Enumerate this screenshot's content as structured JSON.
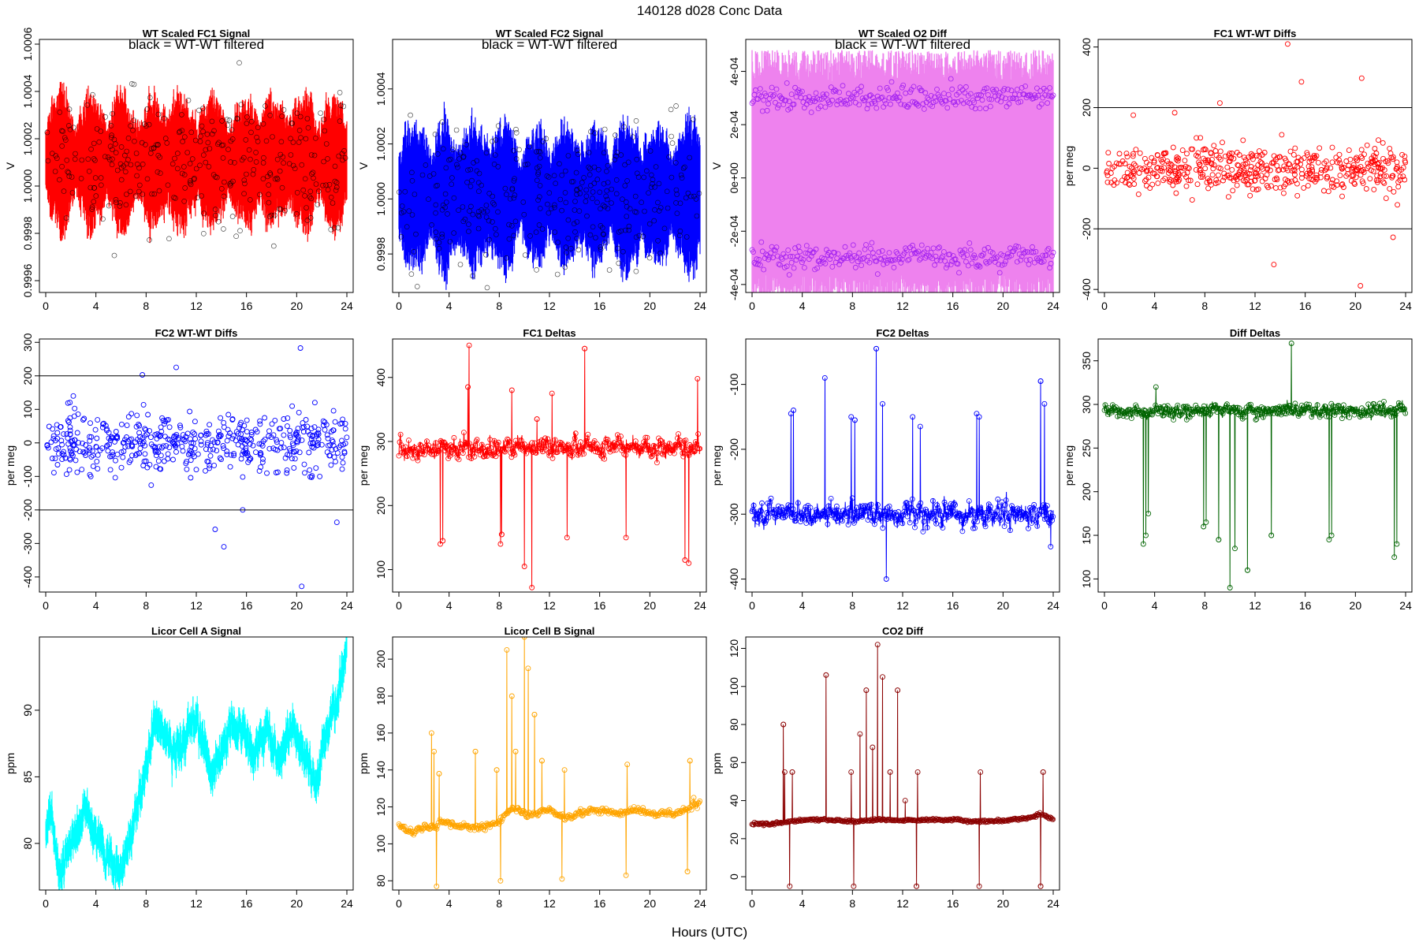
{
  "figure": {
    "title": "140128   d028   Conc Data",
    "xlabel": "Hours (UTC)"
  },
  "chart_data": [
    {
      "id": "fc1_signal",
      "type": "line",
      "title": "WT Scaled FC1 Signal",
      "annotation": "black = WT-WT filtered",
      "ylabel": "V",
      "color": "#ff0000",
      "xlim": [
        0,
        24
      ],
      "ylim": [
        0.99955,
        1.00062
      ],
      "xticks": [
        "0",
        "4",
        "8",
        "12",
        "16",
        "20",
        "24"
      ],
      "yticks": [
        0.9996,
        0.9998,
        1.0,
        1.0002,
        1.0004,
        1.0006
      ],
      "ytick_labels": [
        "0.9996",
        "0.9998",
        "1.0000",
        "1.0002",
        "1.0004",
        "1.0006"
      ],
      "center": 1.0001,
      "amplitude": 0.00024,
      "series": [
        {
          "name": "signal",
          "color": "#ff0000",
          "style": "band"
        },
        {
          "name": "WT-WT filtered",
          "color": "#000000",
          "style": "points"
        }
      ]
    },
    {
      "id": "fc2_signal",
      "type": "line",
      "title": "WT Scaled FC2 Signal",
      "annotation": "black = WT-WT filtered",
      "ylabel": "V",
      "color": "#0000ff",
      "xlim": [
        0,
        24
      ],
      "ylim": [
        0.99966,
        1.00058
      ],
      "xticks": [
        "0",
        "4",
        "8",
        "12",
        "16",
        "20",
        "24"
      ],
      "yticks": [
        0.9998,
        1.0,
        1.0002,
        1.0004
      ],
      "ytick_labels": [
        "0.9998",
        "1.0000",
        "1.0002",
        "1.0004"
      ],
      "center": 1.00001,
      "amplitude": 0.00022,
      "series": [
        {
          "name": "signal",
          "color": "#0000ff",
          "style": "band"
        },
        {
          "name": "WT-WT filtered",
          "color": "#000000",
          "style": "points"
        }
      ]
    },
    {
      "id": "o2_diff",
      "type": "line",
      "title": "WT Scaled O2 Diff",
      "annotation": "black = WT-WT filtered",
      "ylabel": "V",
      "color": "#ee82ee",
      "xlim": [
        0,
        24
      ],
      "ylim": [
        -0.00043,
        0.00052
      ],
      "xticks": [
        "0",
        "4",
        "8",
        "12",
        "16",
        "20",
        "24"
      ],
      "yticks": [
        -0.0004,
        -0.0002,
        0.0,
        0.0002,
        0.0004
      ],
      "ytick_labels": [
        "-4e-04",
        "-2e-04",
        "0e+00",
        "2e-04",
        "4e-04"
      ],
      "upper_level": 0.0003,
      "lower_level": -0.0003,
      "series": [
        {
          "name": "signal",
          "color": "#ee82ee",
          "style": "band"
        },
        {
          "name": "points",
          "color": "#a020f0",
          "style": "points"
        }
      ]
    },
    {
      "id": "fc1_wtwt",
      "type": "scatter",
      "title": "FC1 WT-WT Diffs",
      "ylabel": "per meg",
      "color": "#ff0000",
      "xlim": [
        0,
        24
      ],
      "ylim": [
        -410,
        425
      ],
      "xticks": [
        "0",
        "4",
        "8",
        "12",
        "16",
        "20",
        "24"
      ],
      "yticks": [
        -400,
        -200,
        0,
        200,
        400
      ],
      "ytick_labels": [
        "-400",
        "-200",
        "0",
        "200",
        "400"
      ],
      "hlines": [
        200,
        -200
      ],
      "spread": 38,
      "outliers": [
        [
          14.6,
          410
        ],
        [
          15.7,
          285
        ],
        [
          20.5,
          297
        ],
        [
          13.5,
          -318
        ],
        [
          20.4,
          -388
        ],
        [
          23.0,
          -228
        ],
        [
          9.2,
          215
        ],
        [
          2.3,
          175
        ],
        [
          5.6,
          183
        ]
      ]
    },
    {
      "id": "fc2_wtwt",
      "type": "scatter",
      "title": "FC2 WT-WT Diffs",
      "ylabel": "per meg",
      "color": "#0000ff",
      "xlim": [
        0,
        24
      ],
      "ylim": [
        -445,
        310
      ],
      "xticks": [
        "0",
        "4",
        "8",
        "12",
        "16",
        "20",
        "24"
      ],
      "yticks": [
        -400,
        -300,
        -200,
        -100,
        0,
        100,
        200,
        300
      ],
      "ytick_labels": [
        "-400",
        "-300",
        "-200",
        "-100",
        "0",
        "100",
        "200",
        "300"
      ],
      "hlines": [
        200,
        -200
      ],
      "spread": 45,
      "outliers": [
        [
          20.3,
          283
        ],
        [
          7.7,
          203
        ],
        [
          10.4,
          225
        ],
        [
          2.2,
          140
        ],
        [
          13.5,
          -258
        ],
        [
          14.2,
          -310
        ],
        [
          15.7,
          -200
        ],
        [
          20.4,
          -428
        ],
        [
          23.2,
          -237
        ]
      ]
    },
    {
      "id": "fc1_deltas",
      "type": "line",
      "title": "FC1 Deltas",
      "ylabel": "per meg",
      "color": "#ff0000",
      "xlim": [
        0,
        24
      ],
      "ylim": [
        65,
        460
      ],
      "xticks": [
        "0",
        "4",
        "8",
        "12",
        "16",
        "20",
        "24"
      ],
      "yticks": [
        100,
        200,
        300,
        400
      ],
      "ytick_labels": [
        "100",
        "200",
        "300",
        "400"
      ],
      "baseline": 290,
      "noise": 16,
      "spikes": [
        [
          3.3,
          140
        ],
        [
          3.5,
          145
        ],
        [
          5.6,
          450
        ],
        [
          5.5,
          385
        ],
        [
          8.1,
          140
        ],
        [
          8.2,
          155
        ],
        [
          9.0,
          380
        ],
        [
          10.0,
          105
        ],
        [
          10.6,
          72
        ],
        [
          11.0,
          335
        ],
        [
          14.8,
          445
        ],
        [
          13.4,
          150
        ],
        [
          18.1,
          150
        ],
        [
          22.8,
          115
        ],
        [
          23.1,
          110
        ],
        [
          23.8,
          398
        ],
        [
          12.2,
          375
        ]
      ]
    },
    {
      "id": "fc2_deltas",
      "type": "line",
      "title": "FC2 Deltas",
      "ylabel": "per meg",
      "color": "#0000ff",
      "xlim": [
        0,
        24
      ],
      "ylim": [
        -420,
        -30
      ],
      "xticks": [
        "0",
        "4",
        "8",
        "12",
        "16",
        "20",
        "24"
      ],
      "yticks": [
        -400,
        -300,
        -200,
        -100
      ],
      "ytick_labels": [
        "-400",
        "-300",
        "-200",
        "-100"
      ],
      "baseline": -300,
      "noise": 18,
      "spikes": [
        [
          3.1,
          -145
        ],
        [
          3.3,
          -140
        ],
        [
          5.8,
          -90
        ],
        [
          7.9,
          -150
        ],
        [
          8.2,
          -155
        ],
        [
          9.9,
          -45
        ],
        [
          10.7,
          -400
        ],
        [
          10.4,
          -130
        ],
        [
          12.8,
          -150
        ],
        [
          13.4,
          -165
        ],
        [
          17.9,
          -145
        ],
        [
          18.1,
          -150
        ],
        [
          23.0,
          -95
        ],
        [
          23.3,
          -130
        ],
        [
          23.8,
          -350
        ]
      ]
    },
    {
      "id": "diff_deltas",
      "type": "line",
      "title": "Diff Deltas",
      "ylabel": "per meg",
      "color": "#006400",
      "xlim": [
        0,
        24
      ],
      "ylim": [
        85,
        375
      ],
      "xticks": [
        "0",
        "4",
        "8",
        "12",
        "16",
        "20",
        "24"
      ],
      "yticks": [
        100,
        150,
        200,
        250,
        300,
        350
      ],
      "ytick_labels": [
        "100",
        "150",
        "200",
        "250",
        "300",
        "350"
      ],
      "baseline": 293,
      "noise": 8,
      "spikes": [
        [
          3.1,
          140
        ],
        [
          3.3,
          150
        ],
        [
          3.5,
          175
        ],
        [
          7.9,
          160
        ],
        [
          8.1,
          165
        ],
        [
          9.1,
          145
        ],
        [
          10.0,
          90
        ],
        [
          10.4,
          135
        ],
        [
          11.4,
          110
        ],
        [
          13.3,
          150
        ],
        [
          14.9,
          370
        ],
        [
          17.9,
          145
        ],
        [
          18.1,
          150
        ],
        [
          23.1,
          125
        ],
        [
          23.3,
          140
        ],
        [
          4.1,
          320
        ]
      ]
    },
    {
      "id": "licor_a",
      "type": "line",
      "title": "Licor Cell A Signal",
      "ylabel": "ppm",
      "color": "#00ffff",
      "xlim": [
        0,
        24
      ],
      "ylim": [
        76.5,
        95.5
      ],
      "xticks": [
        "0",
        "4",
        "8",
        "12",
        "16",
        "20",
        "24"
      ],
      "yticks": [
        80,
        85,
        90
      ],
      "ytick_labels": [
        "80",
        "85",
        "90"
      ],
      "trend": [
        [
          0,
          81.5
        ],
        [
          0.5,
          82.0
        ],
        [
          1.1,
          77.2
        ],
        [
          1.8,
          79.5
        ],
        [
          3.2,
          82.5
        ],
        [
          4.3,
          80.0
        ],
        [
          5.8,
          78.0
        ],
        [
          6.8,
          80.5
        ],
        [
          7.8,
          84.5
        ],
        [
          8.7,
          89.0
        ],
        [
          9.5,
          88.5
        ],
        [
          10.3,
          86.5
        ],
        [
          11.8,
          89.5
        ],
        [
          12.7,
          87.0
        ],
        [
          13.3,
          85.0
        ],
        [
          14.8,
          89.0
        ],
        [
          15.4,
          88.5
        ],
        [
          16.5,
          86.5
        ],
        [
          17.7,
          88.5
        ],
        [
          18.5,
          86.0
        ],
        [
          19.5,
          89.0
        ],
        [
          20.3,
          87.5
        ],
        [
          21.6,
          84.5
        ],
        [
          22.2,
          88.0
        ],
        [
          23.0,
          90.0
        ],
        [
          24,
          94.5
        ]
      ],
      "noise": 0.9
    },
    {
      "id": "licor_b",
      "type": "line",
      "title": "Licor Cell B Signal",
      "ylabel": "ppm",
      "color": "#ffa500",
      "xlim": [
        0,
        24
      ],
      "ylim": [
        75,
        212
      ],
      "xticks": [
        "0",
        "4",
        "8",
        "12",
        "16",
        "20",
        "24"
      ],
      "yticks": [
        80,
        100,
        120,
        140,
        160,
        180,
        200
      ],
      "ytick_labels": [
        "80",
        "100",
        "120",
        "140",
        "160",
        "180",
        "200"
      ],
      "trend": [
        [
          0,
          110
        ],
        [
          1.0,
          106
        ],
        [
          2.0,
          109
        ],
        [
          3.0,
          110
        ],
        [
          3.3,
          112
        ],
        [
          4.5,
          110
        ],
        [
          6.5,
          109
        ],
        [
          8.0,
          112
        ],
        [
          9.0,
          119
        ],
        [
          10.5,
          116
        ],
        [
          12.0,
          118
        ],
        [
          13.3,
          114
        ],
        [
          14.5,
          117
        ],
        [
          16.0,
          118
        ],
        [
          17.5,
          116
        ],
        [
          19.0,
          118
        ],
        [
          20.5,
          116
        ],
        [
          22.0,
          117
        ],
        [
          23.0,
          119
        ],
        [
          24,
          123
        ]
      ],
      "noise": 1.8,
      "spikes": [
        [
          2.6,
          160
        ],
        [
          2.8,
          150
        ],
        [
          3.0,
          77
        ],
        [
          3.2,
          138
        ],
        [
          6.1,
          150
        ],
        [
          7.8,
          140
        ],
        [
          8.1,
          80
        ],
        [
          8.6,
          205
        ],
        [
          9.0,
          180
        ],
        [
          9.3,
          150
        ],
        [
          10.0,
          212
        ],
        [
          10.3,
          195
        ],
        [
          10.8,
          170
        ],
        [
          11.4,
          145
        ],
        [
          13.0,
          81
        ],
        [
          13.2,
          140
        ],
        [
          18.1,
          83
        ],
        [
          18.2,
          143
        ],
        [
          23.0,
          85
        ],
        [
          23.2,
          145
        ],
        [
          23.5,
          125
        ]
      ]
    },
    {
      "id": "co2_diff",
      "type": "line",
      "title": "CO2 Diff",
      "ylabel": "ppm",
      "color": "#8b0000",
      "xlim": [
        0,
        24
      ],
      "ylim": [
        -7,
        126
      ],
      "xticks": [
        "0",
        "4",
        "8",
        "12",
        "16",
        "20",
        "24"
      ],
      "yticks": [
        0,
        20,
        40,
        60,
        80,
        100,
        120
      ],
      "ytick_labels": [
        "0",
        "20",
        "40",
        "60",
        "80",
        "100",
        "120"
      ],
      "trend": [
        [
          0,
          28
        ],
        [
          1.5,
          27.5
        ],
        [
          3.0,
          29
        ],
        [
          4.5,
          30
        ],
        [
          6.0,
          30
        ],
        [
          8.0,
          29
        ],
        [
          10.0,
          30
        ],
        [
          12.0,
          29.5
        ],
        [
          14.0,
          30
        ],
        [
          16.0,
          30
        ],
        [
          18.0,
          29
        ],
        [
          20.0,
          29.5
        ],
        [
          22.0,
          31
        ],
        [
          23.0,
          33
        ],
        [
          24,
          30
        ]
      ],
      "noise": 0.6,
      "spikes": [
        [
          2.5,
          80
        ],
        [
          2.6,
          55
        ],
        [
          3.0,
          -5
        ],
        [
          3.2,
          55
        ],
        [
          5.9,
          106
        ],
        [
          7.9,
          55
        ],
        [
          8.1,
          -5
        ],
        [
          8.6,
          75
        ],
        [
          9.1,
          98
        ],
        [
          9.6,
          68
        ],
        [
          10.0,
          122
        ],
        [
          10.4,
          105
        ],
        [
          11.0,
          55
        ],
        [
          11.6,
          98
        ],
        [
          12.2,
          40
        ],
        [
          13.1,
          -5
        ],
        [
          13.2,
          55
        ],
        [
          18.1,
          -5
        ],
        [
          18.2,
          55
        ],
        [
          23.0,
          -5
        ],
        [
          23.2,
          55
        ]
      ]
    }
  ]
}
